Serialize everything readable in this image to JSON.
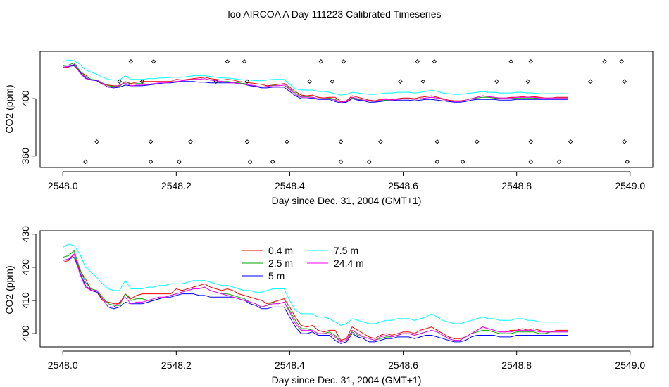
{
  "title": "loo AIRCOA A  Day 111223  Calibrated Timeseries",
  "colors": {
    "0.4 m": "#ff0000",
    "2.5 m": "#00aa00",
    "5 m": "#0000ff",
    "7.5 m": "#00ffff",
    "24.4 m": "#ff00ff"
  },
  "chart_data": [
    {
      "type": "line",
      "xlabel": "Day since Dec. 31, 2004 (GMT+1)",
      "ylabel": "CO2 (ppm)",
      "xlim": [
        2547.96,
        2549.04
      ],
      "ylim": [
        352,
        433
      ],
      "xticks": [
        "2548.0",
        "2548.2",
        "2548.4",
        "2548.6",
        "2548.8",
        "2549.0"
      ],
      "yticks": [
        "360",
        "400"
      ],
      "x_start": 2548.0,
      "x_step": 0.01,
      "series": [
        {
          "name": "0.4 m",
          "values": [
            421.5,
            422.0,
            424.0,
            419.0,
            416.5,
            413.0,
            412.5,
            410.0,
            409.5,
            409.0,
            409.0,
            412.0,
            410.5,
            411.5,
            412.0,
            412.0,
            412.0,
            412.0,
            412.0,
            412.0,
            413.5,
            413.0,
            413.5,
            414.0,
            414.5,
            415.0,
            414.0,
            413.5,
            413.0,
            413.5,
            413.0,
            412.0,
            411.5,
            411.0,
            410.5,
            410.0,
            409.0,
            409.5,
            410.0,
            410.5,
            408.0,
            405.0,
            402.5,
            402.0,
            402.5,
            401.0,
            400.5,
            401.0,
            401.0,
            398.0,
            398.5,
            402.0,
            401.0,
            400.0,
            399.0,
            398.5,
            399.5,
            400.0,
            399.5,
            400.0,
            400.5,
            400.5,
            400.0,
            401.0,
            401.5,
            402.0,
            401.0,
            400.0,
            399.0,
            398.5,
            398.5,
            399.0,
            400.0,
            401.0,
            402.0,
            401.5,
            401.0,
            400.5,
            400.5,
            401.0,
            401.0,
            401.5,
            401.0,
            401.5,
            401.0,
            400.5,
            400.5,
            401.0,
            401.0,
            401.0
          ]
        },
        {
          "name": "2.5 m",
          "values": [
            423.0,
            423.5,
            425.0,
            419.5,
            415.5,
            413.5,
            413.0,
            411.0,
            409.0,
            408.5,
            408.5,
            412.0,
            410.0,
            410.5,
            410.5,
            410.0,
            410.0,
            410.5,
            411.0,
            411.5,
            412.0,
            412.5,
            413.0,
            413.5,
            413.5,
            414.0,
            413.0,
            412.5,
            412.0,
            412.0,
            411.5,
            411.0,
            410.5,
            409.5,
            409.0,
            408.0,
            408.5,
            409.5,
            409.0,
            409.5,
            407.0,
            404.0,
            401.5,
            401.5,
            401.0,
            400.0,
            400.0,
            400.5,
            399.5,
            397.5,
            398.0,
            400.5,
            399.5,
            399.0,
            398.5,
            398.0,
            398.5,
            399.0,
            399.0,
            399.5,
            400.0,
            400.0,
            399.5,
            400.0,
            400.5,
            401.0,
            400.5,
            399.5,
            398.5,
            398.0,
            398.0,
            399.0,
            400.0,
            400.5,
            401.0,
            401.0,
            400.5,
            400.0,
            400.0,
            400.0,
            400.5,
            400.5,
            400.5,
            400.5,
            400.0,
            400.0,
            400.5,
            400.5,
            400.5,
            400.5
          ]
        },
        {
          "name": "5 m",
          "values": [
            422.0,
            422.5,
            423.0,
            418.5,
            414.5,
            413.0,
            412.5,
            410.5,
            408.0,
            407.5,
            408.0,
            409.5,
            409.0,
            409.0,
            409.0,
            409.5,
            410.0,
            410.5,
            411.0,
            411.0,
            411.5,
            412.0,
            412.0,
            412.0,
            411.5,
            411.5,
            411.0,
            411.0,
            411.0,
            411.0,
            411.0,
            410.5,
            410.0,
            409.0,
            408.5,
            407.5,
            407.5,
            408.0,
            408.0,
            408.0,
            405.0,
            402.0,
            400.0,
            400.0,
            400.5,
            399.5,
            399.5,
            399.5,
            398.0,
            397.0,
            397.5,
            400.0,
            399.0,
            398.5,
            397.5,
            397.5,
            398.0,
            398.5,
            398.5,
            399.0,
            399.0,
            399.0,
            398.5,
            399.0,
            399.5,
            399.5,
            399.0,
            398.5,
            398.0,
            397.5,
            397.5,
            398.0,
            399.0,
            399.5,
            399.5,
            399.5,
            399.5,
            399.0,
            399.0,
            399.0,
            399.5,
            399.5,
            399.5,
            399.5,
            399.5,
            399.5,
            399.5,
            399.5,
            399.5,
            399.5
          ]
        },
        {
          "name": "7.5 m",
          "values": [
            426.0,
            427.0,
            426.5,
            424.0,
            420.0,
            418.5,
            417.0,
            415.0,
            413.5,
            413.0,
            413.0,
            416.0,
            413.5,
            413.5,
            413.5,
            414.0,
            414.0,
            414.5,
            414.5,
            415.0,
            415.0,
            415.0,
            415.5,
            416.0,
            416.0,
            416.0,
            415.5,
            415.0,
            414.5,
            414.5,
            414.0,
            413.5,
            413.0,
            413.0,
            412.5,
            412.5,
            413.0,
            413.5,
            413.5,
            413.5,
            410.0,
            407.0,
            406.0,
            406.0,
            406.0,
            405.0,
            405.0,
            404.5,
            403.5,
            402.5,
            403.0,
            404.5,
            404.0,
            403.5,
            403.0,
            403.0,
            403.5,
            404.0,
            404.0,
            404.5,
            404.5,
            404.5,
            404.0,
            404.5,
            405.0,
            406.0,
            405.0,
            404.0,
            403.5,
            403.0,
            403.0,
            403.5,
            404.0,
            404.5,
            405.0,
            404.5,
            404.5,
            404.0,
            404.0,
            404.0,
            404.5,
            404.5,
            404.0,
            404.0,
            403.5,
            403.5,
            403.5,
            403.5,
            403.5,
            403.5
          ]
        },
        {
          "name": "24.4 m",
          "values": [
            422.0,
            422.5,
            424.0,
            418.0,
            414.0,
            413.0,
            413.0,
            410.5,
            408.0,
            408.0,
            409.5,
            411.0,
            409.0,
            409.5,
            409.5,
            410.0,
            410.5,
            411.0,
            411.0,
            411.5,
            412.0,
            412.5,
            413.0,
            413.5,
            413.5,
            414.0,
            413.0,
            412.5,
            412.0,
            411.5,
            411.0,
            410.5,
            410.0,
            409.5,
            409.0,
            408.0,
            408.5,
            409.0,
            409.0,
            409.5,
            406.5,
            403.0,
            401.0,
            401.0,
            401.0,
            400.0,
            400.0,
            400.0,
            399.0,
            397.5,
            398.0,
            401.0,
            400.0,
            399.0,
            398.5,
            398.0,
            399.0,
            399.5,
            399.0,
            399.5,
            400.0,
            400.0,
            399.5,
            400.0,
            400.5,
            401.0,
            400.5,
            399.5,
            398.5,
            398.0,
            398.0,
            399.0,
            400.0,
            401.0,
            402.0,
            401.5,
            401.0,
            400.5,
            400.5,
            400.5,
            401.0,
            401.0,
            401.0,
            401.0,
            400.5,
            400.5,
            400.5,
            400.5,
            400.5,
            400.5
          ]
        }
      ],
      "markers": [
        [
          2548.12,
          426
        ],
        [
          2548.16,
          426
        ],
        [
          2548.29,
          426
        ],
        [
          2548.32,
          426
        ],
        [
          2548.455,
          426
        ],
        [
          2548.495,
          426
        ],
        [
          2548.625,
          426
        ],
        [
          2548.655,
          426
        ],
        [
          2548.79,
          426
        ],
        [
          2548.825,
          426
        ],
        [
          2548.955,
          426
        ],
        [
          2548.985,
          426
        ],
        [
          2548.1,
          412
        ],
        [
          2548.14,
          412
        ],
        [
          2548.27,
          412
        ],
        [
          2548.325,
          412
        ],
        [
          2548.435,
          412
        ],
        [
          2548.475,
          412
        ],
        [
          2548.595,
          412
        ],
        [
          2548.635,
          412
        ],
        [
          2548.765,
          412
        ],
        [
          2548.82,
          412
        ],
        [
          2548.93,
          412
        ],
        [
          2548.99,
          412
        ],
        [
          2548.06,
          370
        ],
        [
          2548.155,
          370
        ],
        [
          2548.225,
          370
        ],
        [
          2548.325,
          370
        ],
        [
          2548.395,
          370
        ],
        [
          2548.49,
          370
        ],
        [
          2548.56,
          370
        ],
        [
          2548.66,
          370
        ],
        [
          2548.73,
          370
        ],
        [
          2548.825,
          370
        ],
        [
          2548.895,
          370
        ],
        [
          2548.99,
          370
        ],
        [
          2548.04,
          356
        ],
        [
          2548.155,
          356
        ],
        [
          2548.205,
          356
        ],
        [
          2548.33,
          356
        ],
        [
          2548.37,
          356
        ],
        [
          2548.49,
          356
        ],
        [
          2548.54,
          356
        ],
        [
          2548.66,
          356
        ],
        [
          2548.705,
          356
        ],
        [
          2548.825,
          356
        ],
        [
          2548.875,
          356
        ],
        [
          2548.995,
          356
        ]
      ]
    },
    {
      "type": "line",
      "xlabel": "Day since Dec. 31, 2004 (GMT+1)",
      "ylabel": "CO2 (ppm)",
      "xlim": [
        2547.96,
        2549.04
      ],
      "ylim": [
        396,
        431
      ],
      "xticks": [
        "2548.0",
        "2548.2",
        "2548.4",
        "2548.6",
        "2548.8",
        "2549.0"
      ],
      "yticks": [
        "400",
        "410",
        "420",
        "430"
      ],
      "legend": [
        "0.4 m",
        "2.5 m",
        "5 m",
        "7.5 m",
        "24.4 m"
      ],
      "legend_position": "top-center",
      "series_ref": "chart_data.0.series"
    }
  ]
}
